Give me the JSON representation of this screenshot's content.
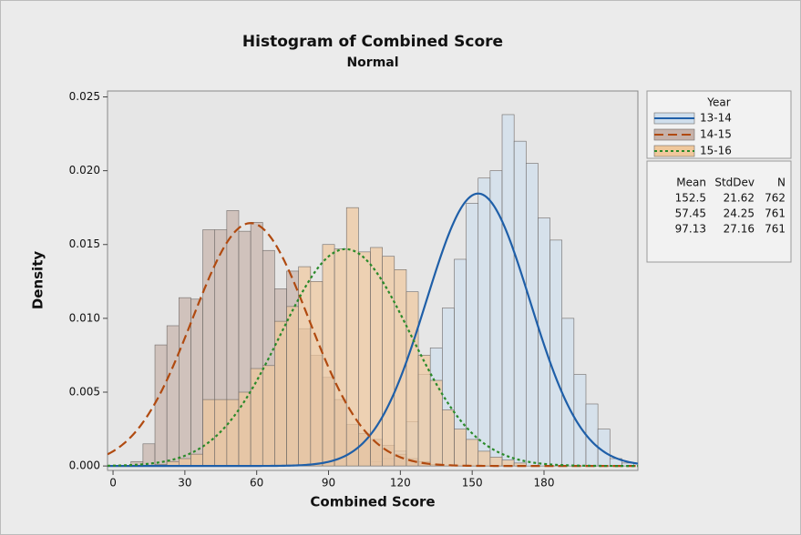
{
  "chart_data": {
    "type": "histogram",
    "title": "Histogram of Combined Score",
    "subtitle": "Normal",
    "x_label": "Combined Score",
    "y_label": "Density",
    "bins": [
      7.5,
      12.5,
      17.5,
      22.5,
      27.5,
      32.5,
      37.5,
      42.5,
      47.5,
      52.5,
      57.5,
      62.5,
      67.5,
      72.5,
      77.5,
      82.5,
      87.5,
      92.5,
      97.5,
      102.5,
      107.5,
      112.5,
      117.5,
      122.5,
      127.5,
      132.5,
      137.5,
      142.5,
      147.5,
      152.5,
      157.5,
      162.5,
      167.5,
      172.5,
      177.5,
      182.5,
      187.5,
      192.5,
      197.5,
      202.5,
      207.5,
      212.5,
      217.5
    ],
    "series": [
      {
        "name": "13-14",
        "color": "#cfdeec",
        "line_color": "#1f5fa8",
        "line_style": "solid",
        "mean": 152.5,
        "stdev": 21.62,
        "n": 762,
        "values": [
          0,
          0,
          0,
          0,
          0,
          0,
          0,
          0,
          0,
          0,
          0,
          0,
          0,
          0,
          0,
          0,
          0,
          0,
          0,
          0,
          0.0003,
          0.0005,
          0.001,
          0.003,
          0.0062,
          0.008,
          0.0107,
          0.014,
          0.0178,
          0.0195,
          0.02,
          0.0238,
          0.022,
          0.0205,
          0.0168,
          0.0153,
          0.01,
          0.0062,
          0.0042,
          0.0025,
          0.0005,
          0.0002
        ]
      },
      {
        "name": "14-15",
        "color": "#c6b2aa",
        "line_color": "#b04a10",
        "line_style": "dashed",
        "mean": 57.45,
        "stdev": 24.25,
        "n": 761,
        "values": [
          0.0003,
          0.0015,
          0.0082,
          0.0095,
          0.0114,
          0.0113,
          0.016,
          0.016,
          0.0173,
          0.0159,
          0.0165,
          0.0146,
          0.012,
          0.0132,
          0.0093,
          0.0075,
          0.006,
          0.0045,
          0.0028,
          0.0022,
          0.0018,
          0.0014,
          0.0008,
          0.0005,
          0.0003,
          0.0001,
          0,
          0,
          0,
          0,
          0,
          0,
          0,
          0,
          0,
          0,
          0,
          0,
          0,
          0,
          0,
          0
        ]
      },
      {
        "name": "15-16",
        "color": "#f0c89c",
        "line_color": "#2a8a2a",
        "line_style": "dotted",
        "mean": 97.13,
        "stdev": 27.16,
        "n": 761,
        "values": [
          0,
          0,
          0.0001,
          0.0003,
          0.0005,
          0.0008,
          0.0045,
          0.0045,
          0.0045,
          0.005,
          0.0066,
          0.0068,
          0.0098,
          0.0108,
          0.0135,
          0.0125,
          0.015,
          0.0147,
          0.0175,
          0.0145,
          0.0148,
          0.0142,
          0.0133,
          0.0118,
          0.0075,
          0.0058,
          0.0038,
          0.0025,
          0.0018,
          0.001,
          0.0006,
          0.0004,
          0.0002,
          0,
          0,
          0,
          0,
          0,
          0,
          0,
          0,
          0
        ]
      }
    ],
    "legend_title": "Year",
    "stat_headers": [
      "Mean",
      "StdDev",
      "N"
    ],
    "xlim": [
      -2.3,
      219.2
    ],
    "xticks": [
      0,
      30,
      60,
      90,
      120,
      150,
      180
    ],
    "ylim": [
      -0.0003,
      0.0254
    ],
    "yticks": [
      {
        "value": 0,
        "label": "0.000"
      },
      {
        "value": 0.005,
        "label": "0.005"
      },
      {
        "value": 0.01,
        "label": "0.010"
      },
      {
        "value": 0.015,
        "label": "0.015"
      },
      {
        "value": 0.02,
        "label": "0.020"
      },
      {
        "value": 0.025,
        "label": "0.025"
      }
    ]
  }
}
